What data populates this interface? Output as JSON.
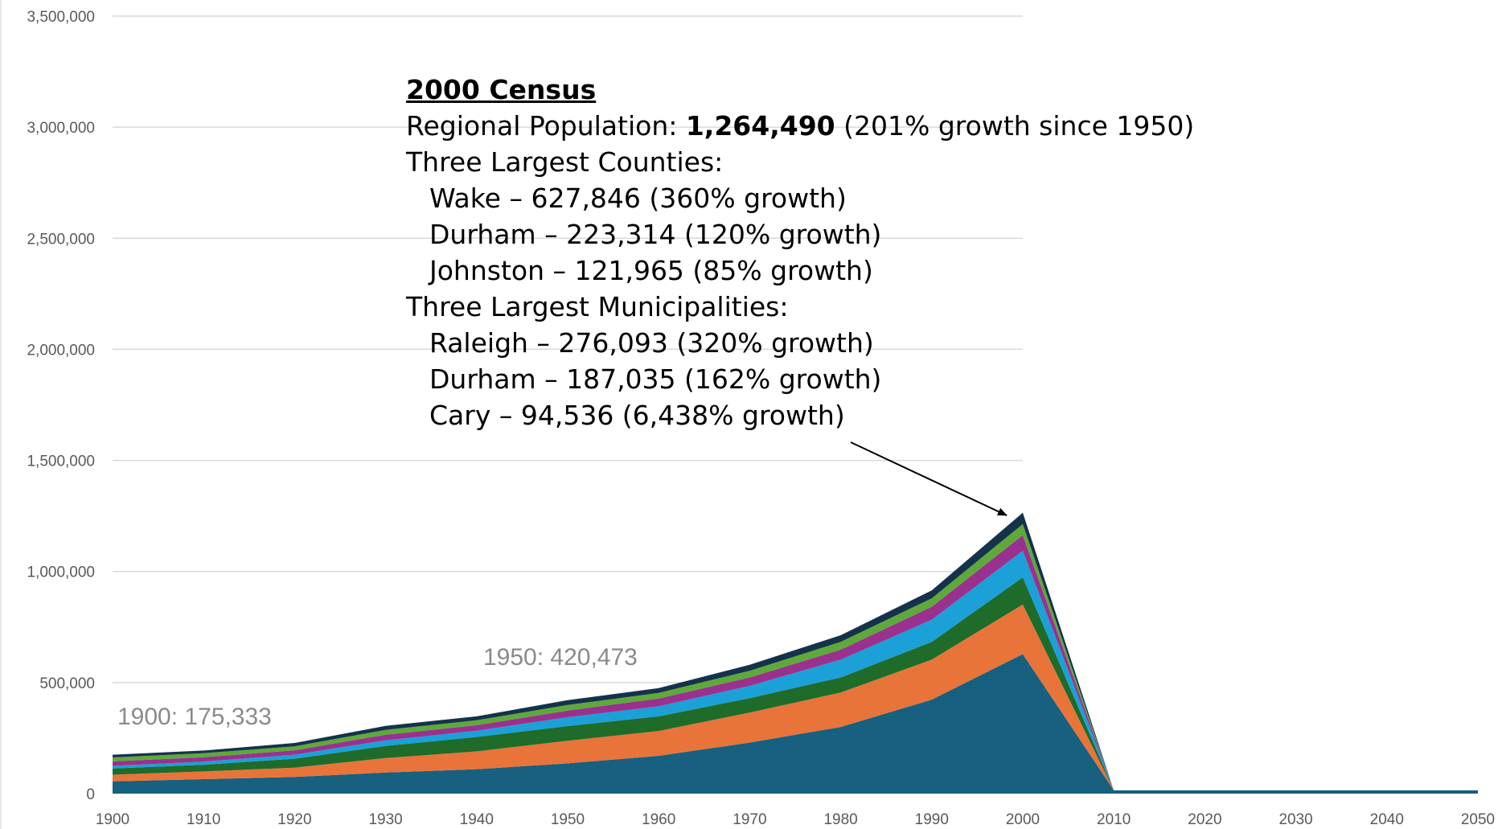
{
  "chart_data": {
    "type": "area",
    "stacked": true,
    "x": [
      1900,
      1910,
      1920,
      1930,
      1940,
      1950,
      1960,
      1970,
      1980,
      1990,
      2000,
      2010,
      2020,
      2030,
      2040,
      2050
    ],
    "x_ticks": [
      "1900",
      "1910",
      "1920",
      "1930",
      "1940",
      "1950",
      "1960",
      "1970",
      "1980",
      "1990",
      "2000",
      "2010",
      "2020",
      "2030",
      "2040",
      "2050"
    ],
    "y_ticks": [
      "0",
      "500,000",
      "1,000,000",
      "1,500,000",
      "2,000,000",
      "2,500,000",
      "3,000,000",
      "3,500,000"
    ],
    "ylim": [
      0,
      3500000
    ],
    "grid": true,
    "legend": "none",
    "series": [
      {
        "color": "#17607f",
        "values": [
          55000,
          65000,
          75000,
          95000,
          110000,
          136000,
          170000,
          230000,
          300000,
          423000,
          627846,
          15000,
          15000,
          15000,
          15000,
          15000
        ]
      },
      {
        "color": "#e8743a",
        "values": [
          30000,
          35000,
          42000,
          65000,
          80000,
          102000,
          112000,
          135000,
          155000,
          180000,
          223314,
          0,
          0,
          0,
          0,
          0
        ]
      },
      {
        "color": "#1f6b2a",
        "values": [
          28000,
          30000,
          40000,
          55000,
          65000,
          66000,
          66000,
          65000,
          68000,
          80000,
          121965,
          0,
          0,
          0,
          0,
          0
        ]
      },
      {
        "color": "#1ba0d8",
        "values": [
          12000,
          14000,
          18000,
          25000,
          28000,
          40000,
          45000,
          55000,
          80000,
          100000,
          120000,
          0,
          0,
          0,
          0,
          0
        ]
      },
      {
        "color": "#9a318f",
        "values": [
          20000,
          20000,
          20000,
          25000,
          25000,
          30000,
          35000,
          38000,
          45000,
          58000,
          70000,
          0,
          0,
          0,
          0,
          0
        ]
      },
      {
        "color": "#5ea93a",
        "values": [
          18000,
          18000,
          18000,
          22000,
          22000,
          25000,
          25000,
          30000,
          35000,
          38000,
          50000,
          0,
          0,
          0,
          0,
          0
        ]
      },
      {
        "color": "#14334a",
        "values": [
          12333,
          12000,
          15000,
          18000,
          18000,
          21473,
          22000,
          27000,
          30000,
          36000,
          51365,
          0,
          0,
          0,
          0,
          0
        ]
      }
    ],
    "annotations": [
      "1900: 175,333",
      "1950: 420,473"
    ]
  },
  "callout": {
    "title": "2000 Census",
    "regional_prefix": "Regional Population: ",
    "regional_value": "1,264,490",
    "regional_suffix": " (201% growth since 1950)",
    "counties_heading": "Three Largest Counties:",
    "counties": [
      "Wake – 627,846 (360% growth)",
      "Durham – 223,314 (120% growth)",
      "Johnston – 121,965 (85% growth)"
    ],
    "municipalities_heading": "Three Largest Municipalities:",
    "municipalities": [
      "Raleigh – 276,093 (320% growth)",
      "Durham – 187,035 (162% growth)",
      "Cary – 94,536 (6,438% growth)"
    ]
  }
}
